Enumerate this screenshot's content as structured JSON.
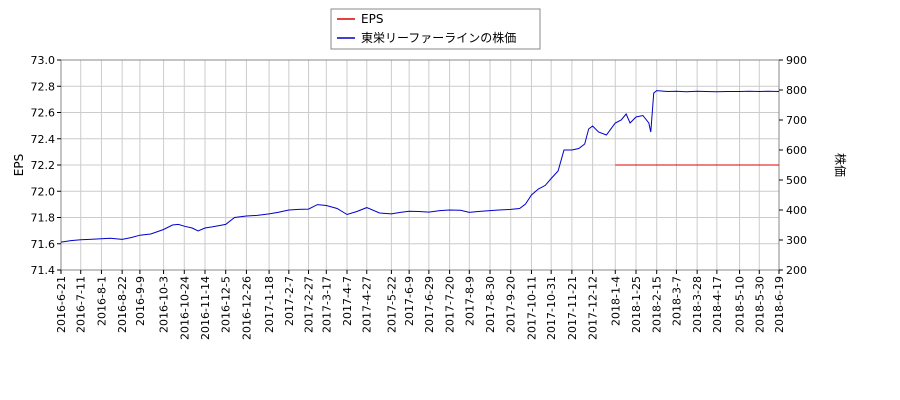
{
  "chart_data": {
    "type": "line",
    "legend": {
      "placement": "top-center",
      "entries": [
        {
          "label": "EPS",
          "color": "#dd0000"
        },
        {
          "label": "東栄リーファーラインの株価",
          "color": "#0000cc"
        }
      ]
    },
    "y_left": {
      "label": "EPS",
      "min": 71.4,
      "max": 73.0,
      "ticks": [
        "71.4",
        "71.6",
        "71.8",
        "72.0",
        "72.2",
        "72.4",
        "72.6",
        "72.8",
        "73.0"
      ]
    },
    "y_right": {
      "label": "株価",
      "min": 200,
      "max": 900,
      "ticks": [
        "200",
        "300",
        "400",
        "500",
        "600",
        "700",
        "800",
        "900"
      ]
    },
    "x_range": [
      "2016-06-21",
      "2018-06-19"
    ],
    "x_ticks": [
      "2016-6-21",
      "2016-7-11",
      "2016-8-1",
      "2016-8-22",
      "2016-9-9",
      "2016-10-3",
      "2016-10-24",
      "2016-11-14",
      "2016-12-5",
      "2016-12-26",
      "2017-1-18",
      "2017-2-7",
      "2017-2-27",
      "2017-3-17",
      "2017-4-7",
      "2017-4-27",
      "2017-5-22",
      "2017-6-9",
      "2017-6-29",
      "2017-7-20",
      "2017-8-9",
      "2017-8-30",
      "2017-9-20",
      "2017-10-11",
      "2017-10-31",
      "2017-11-21",
      "2017-12-12",
      "2018-1-4",
      "2018-1-25",
      "2018-2-15",
      "2018-3-7",
      "2018-3-28",
      "2018-4-17",
      "2018-5-10",
      "2018-5-30",
      "2018-6-19"
    ],
    "grid": true,
    "series": [
      {
        "name": "EPS",
        "axis": "left",
        "color": "#dd0000",
        "points": [
          [
            "2018-01-04",
            72.2
          ],
          [
            "2018-06-19",
            72.2
          ]
        ]
      },
      {
        "name": "東栄リーファーラインの株価",
        "axis": "right",
        "color": "#0000cc",
        "points": [
          [
            "2016-06-21",
            293
          ],
          [
            "2016-07-01",
            298
          ],
          [
            "2016-07-11",
            301
          ],
          [
            "2016-07-20",
            302
          ],
          [
            "2016-08-01",
            304
          ],
          [
            "2016-08-10",
            306
          ],
          [
            "2016-08-22",
            302
          ],
          [
            "2016-08-31",
            308
          ],
          [
            "2016-09-09",
            316
          ],
          [
            "2016-09-20",
            320
          ],
          [
            "2016-10-03",
            335
          ],
          [
            "2016-10-12",
            350
          ],
          [
            "2016-10-18",
            352
          ],
          [
            "2016-10-24",
            346
          ],
          [
            "2016-11-01",
            340
          ],
          [
            "2016-11-07",
            330
          ],
          [
            "2016-11-14",
            340
          ],
          [
            "2016-11-22",
            344
          ],
          [
            "2016-12-05",
            352
          ],
          [
            "2016-12-14",
            375
          ],
          [
            "2016-12-26",
            380
          ],
          [
            "2017-01-06",
            382
          ],
          [
            "2017-01-18",
            387
          ],
          [
            "2017-01-27",
            392
          ],
          [
            "2017-02-07",
            400
          ],
          [
            "2017-02-17",
            402
          ],
          [
            "2017-02-27",
            403
          ],
          [
            "2017-03-08",
            418
          ],
          [
            "2017-03-17",
            415
          ],
          [
            "2017-03-28",
            405
          ],
          [
            "2017-04-07",
            385
          ],
          [
            "2017-04-17",
            395
          ],
          [
            "2017-04-27",
            408
          ],
          [
            "2017-05-10",
            390
          ],
          [
            "2017-05-22",
            387
          ],
          [
            "2017-05-31",
            392
          ],
          [
            "2017-06-09",
            396
          ],
          [
            "2017-06-19",
            395
          ],
          [
            "2017-06-29",
            393
          ],
          [
            "2017-07-10",
            398
          ],
          [
            "2017-07-20",
            400
          ],
          [
            "2017-07-31",
            399
          ],
          [
            "2017-08-09",
            392
          ],
          [
            "2017-08-18",
            395
          ],
          [
            "2017-08-30",
            398
          ],
          [
            "2017-09-08",
            400
          ],
          [
            "2017-09-20",
            402
          ],
          [
            "2017-09-29",
            405
          ],
          [
            "2017-10-05",
            420
          ],
          [
            "2017-10-11",
            450
          ],
          [
            "2017-10-18",
            470
          ],
          [
            "2017-10-25",
            482
          ],
          [
            "2017-10-31",
            505
          ],
          [
            "2017-11-07",
            530
          ],
          [
            "2017-11-13",
            600
          ],
          [
            "2017-11-21",
            600
          ],
          [
            "2017-11-28",
            605
          ],
          [
            "2017-12-04",
            620
          ],
          [
            "2017-12-08",
            670
          ],
          [
            "2017-12-12",
            680
          ],
          [
            "2017-12-18",
            660
          ],
          [
            "2017-12-26",
            650
          ],
          [
            "2018-01-04",
            690
          ],
          [
            "2018-01-10",
            700
          ],
          [
            "2018-01-15",
            720
          ],
          [
            "2018-01-19",
            690
          ],
          [
            "2018-01-25",
            710
          ],
          [
            "2018-02-01",
            715
          ],
          [
            "2018-02-07",
            690
          ],
          [
            "2018-02-09",
            660
          ],
          [
            "2018-02-12",
            790
          ],
          [
            "2018-02-15",
            798
          ],
          [
            "2018-02-26",
            795
          ],
          [
            "2018-03-07",
            796
          ],
          [
            "2018-03-17",
            794
          ],
          [
            "2018-03-28",
            796
          ],
          [
            "2018-04-06",
            795
          ],
          [
            "2018-04-17",
            794
          ],
          [
            "2018-04-27",
            795
          ],
          [
            "2018-05-10",
            795
          ],
          [
            "2018-05-20",
            796
          ],
          [
            "2018-05-30",
            795
          ],
          [
            "2018-06-08",
            796
          ],
          [
            "2018-06-19",
            795
          ]
        ]
      }
    ]
  }
}
